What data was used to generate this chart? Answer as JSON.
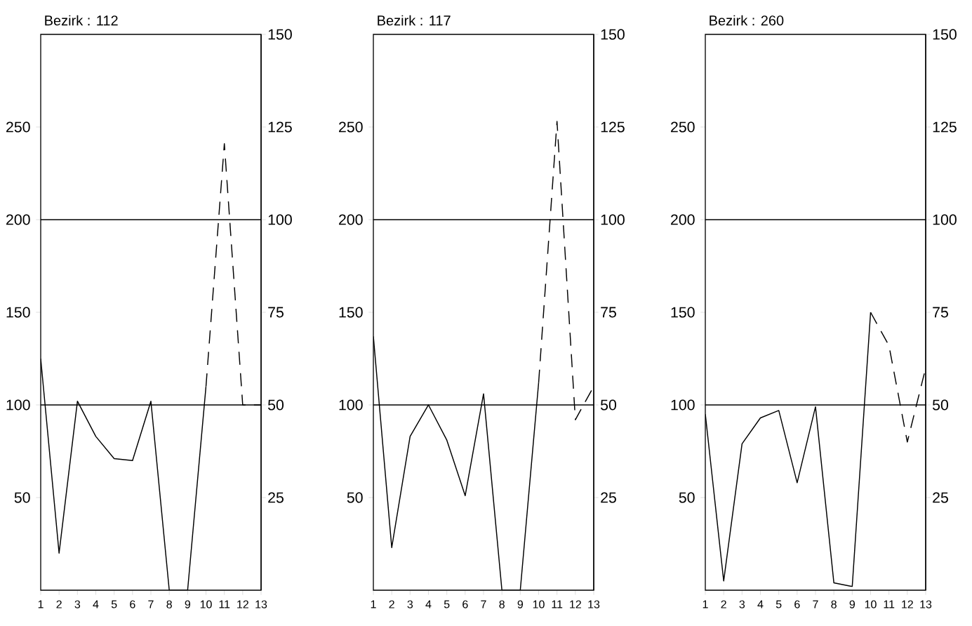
{
  "chart_data": [
    {
      "type": "line",
      "title": "Bezirk : 112",
      "xlim": [
        1,
        13
      ],
      "xticks": [
        1,
        2,
        3,
        4,
        5,
        6,
        7,
        8,
        9,
        10,
        11,
        12,
        13
      ],
      "ylim": [
        0,
        300
      ],
      "yticks": [
        50,
        100,
        150,
        200,
        250
      ],
      "y2lim": [
        0,
        150
      ],
      "y2ticks": [
        25,
        50,
        75,
        100,
        125,
        150
      ],
      "ref_lines": [
        {
          "axis": "y",
          "value": 100
        },
        {
          "axis": "y",
          "value": 200
        }
      ],
      "series": [
        {
          "color": "#000000",
          "line_style": "solid",
          "x": [
            1,
            2,
            3,
            4,
            5,
            6,
            7,
            8,
            9,
            10
          ],
          "values": [
            125,
            20,
            102,
            83,
            71,
            70,
            102,
            0,
            0,
            110
          ]
        },
        {
          "color": "#000000",
          "line_style": "dashed",
          "x": [
            10,
            11,
            12,
            13
          ],
          "values": [
            110,
            241,
            100,
            100
          ]
        }
      ]
    },
    {
      "type": "line",
      "title": "Bezirk : 117",
      "xlim": [
        1,
        13
      ],
      "xticks": [
        1,
        2,
        3,
        4,
        5,
        6,
        7,
        8,
        9,
        10,
        11,
        12,
        13
      ],
      "ylim": [
        0,
        300
      ],
      "yticks": [
        50,
        100,
        150,
        200,
        250
      ],
      "y2lim": [
        0,
        150
      ],
      "y2ticks": [
        25,
        50,
        75,
        100,
        125,
        150
      ],
      "ref_lines": [
        {
          "axis": "y",
          "value": 100
        },
        {
          "axis": "y",
          "value": 200
        }
      ],
      "series": [
        {
          "color": "#000000",
          "line_style": "solid",
          "x": [
            1,
            2,
            3,
            4,
            5,
            6,
            7,
            8,
            9,
            10
          ],
          "values": [
            137,
            23,
            83,
            100,
            81,
            51,
            106,
            0,
            0,
            112
          ]
        },
        {
          "color": "#000000",
          "line_style": "dashed",
          "x": [
            10,
            11,
            12,
            13
          ],
          "values": [
            112,
            253,
            92,
            110
          ]
        }
      ]
    },
    {
      "type": "line",
      "title": "Bezirk : 260",
      "xlim": [
        1,
        13
      ],
      "xticks": [
        1,
        2,
        3,
        4,
        5,
        6,
        7,
        8,
        9,
        10,
        11,
        12,
        13
      ],
      "ylim": [
        0,
        300
      ],
      "yticks": [
        50,
        100,
        150,
        200,
        250
      ],
      "y2lim": [
        0,
        150
      ],
      "y2ticks": [
        25,
        50,
        75,
        100,
        125,
        150
      ],
      "ref_lines": [
        {
          "axis": "y",
          "value": 100
        },
        {
          "axis": "y",
          "value": 200
        }
      ],
      "series": [
        {
          "color": "#000000",
          "line_style": "solid",
          "x": [
            1,
            2,
            3,
            4,
            5,
            6,
            7,
            8,
            9,
            10
          ],
          "values": [
            95,
            5,
            79,
            93,
            97,
            58,
            99,
            4,
            2,
            150
          ]
        },
        {
          "color": "#000000",
          "line_style": "dashed",
          "x": [
            10,
            11,
            12,
            13
          ],
          "values": [
            150,
            132,
            80,
            120
          ]
        }
      ]
    }
  ]
}
